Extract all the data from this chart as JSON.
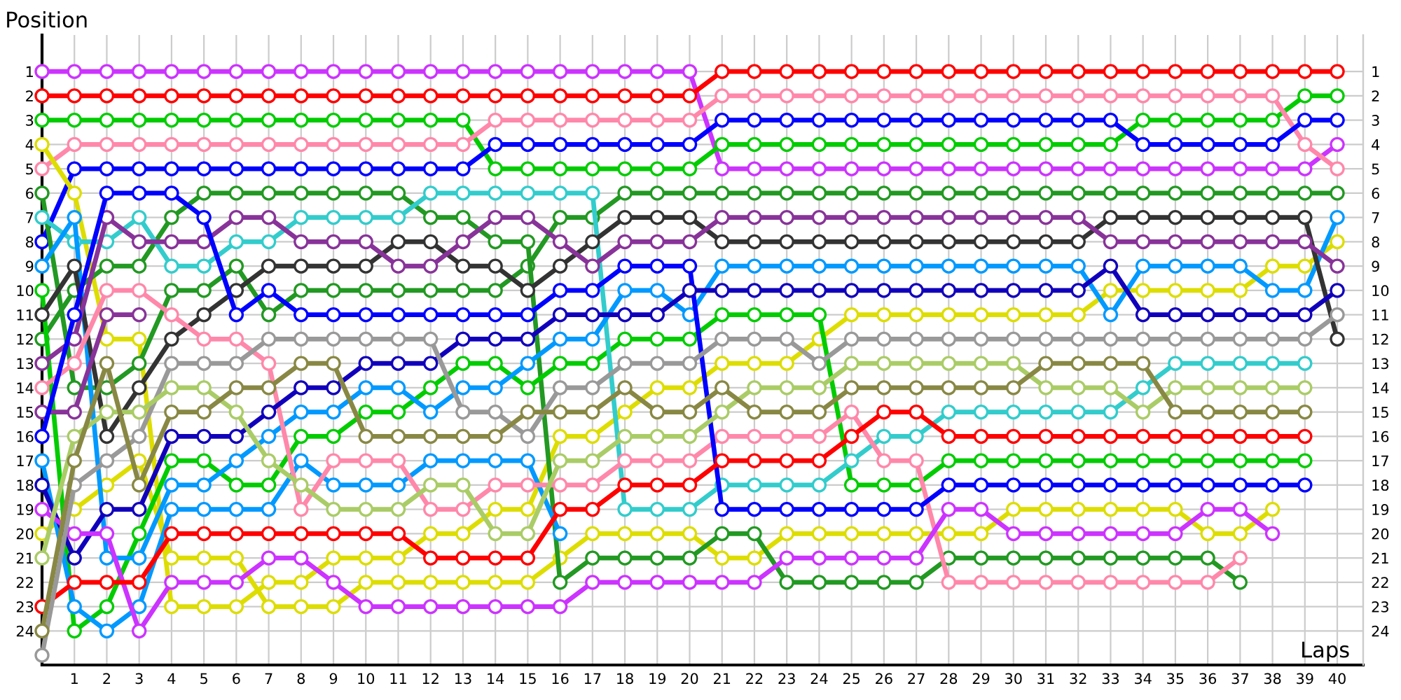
{
  "chart_data": {
    "type": "line",
    "xlabel": "Laps",
    "ylabel": "Position",
    "x": [
      0,
      1,
      2,
      3,
      4,
      5,
      6,
      7,
      8,
      9,
      10,
      11,
      12,
      13,
      14,
      15,
      16,
      17,
      18,
      19,
      20,
      21,
      22,
      23,
      24,
      25,
      26,
      27,
      28,
      29,
      30,
      31,
      32,
      33,
      34,
      35,
      36,
      37,
      38,
      39,
      40
    ],
    "xlim": [
      0,
      40.8
    ],
    "xticks": [
      1,
      2,
      3,
      4,
      5,
      6,
      7,
      8,
      9,
      10,
      11,
      12,
      13,
      14,
      15,
      16,
      17,
      18,
      19,
      20,
      21,
      22,
      23,
      24,
      25,
      26,
      27,
      28,
      29,
      30,
      31,
      32,
      33,
      34,
      35,
      36,
      37,
      38,
      39,
      40
    ],
    "ylim": [
      25.4,
      -0.5
    ],
    "yticks": [
      1,
      2,
      3,
      4,
      5,
      6,
      7,
      8,
      9,
      10,
      11,
      12,
      13,
      14,
      15,
      16,
      17,
      18,
      19,
      20,
      21,
      22,
      23,
      24
    ],
    "y2lim": [
      25.4,
      -0.5
    ],
    "y2ticks": [
      1,
      2,
      3,
      4,
      5,
      6,
      7,
      8,
      9,
      10,
      11,
      12,
      13,
      14,
      15,
      16,
      17,
      18,
      19,
      20,
      21,
      22,
      23,
      24
    ],
    "grid": true,
    "marker": "circle",
    "line_style": "solid",
    "series": [
      {
        "color": "#cc33ff",
        "values": [
          1,
          1,
          1,
          1,
          1,
          1,
          1,
          1,
          1,
          1,
          1,
          1,
          1,
          1,
          1,
          1,
          1,
          1,
          1,
          1,
          1,
          5,
          5,
          5,
          5,
          5,
          5,
          5,
          5,
          5,
          5,
          5,
          5,
          5,
          5,
          5,
          5,
          5,
          5,
          5,
          4
        ]
      },
      {
        "color": "#ff0000",
        "values": [
          2,
          2,
          2,
          2,
          2,
          2,
          2,
          2,
          2,
          2,
          2,
          2,
          2,
          2,
          2,
          2,
          2,
          2,
          2,
          2,
          2,
          1,
          1,
          1,
          1,
          1,
          1,
          1,
          1,
          1,
          1,
          1,
          1,
          1,
          1,
          1,
          1,
          1,
          1,
          1,
          1
        ]
      },
      {
        "color": "#00cc00",
        "values": [
          3,
          3,
          3,
          3,
          3,
          3,
          3,
          3,
          3,
          3,
          3,
          3,
          3,
          3,
          5,
          5,
          5,
          5,
          5,
          5,
          5,
          4,
          4,
          4,
          4,
          4,
          4,
          4,
          4,
          4,
          4,
          4,
          4,
          4,
          3,
          3,
          3,
          3,
          3,
          2,
          2
        ]
      },
      {
        "color": "#ff88aa",
        "values": [
          5,
          4,
          4,
          4,
          4,
          4,
          4,
          4,
          4,
          4,
          4,
          4,
          4,
          4,
          3,
          3,
          3,
          3,
          3,
          3,
          3,
          2,
          2,
          2,
          2,
          2,
          2,
          2,
          2,
          2,
          2,
          2,
          2,
          2,
          2,
          2,
          2,
          2,
          2,
          4,
          5
        ]
      },
      {
        "color": "#0000ff",
        "values": [
          8,
          5,
          5,
          5,
          5,
          5,
          5,
          5,
          5,
          5,
          5,
          5,
          5,
          5,
          4,
          4,
          4,
          4,
          4,
          4,
          4,
          3,
          3,
          3,
          3,
          3,
          3,
          3,
          3,
          3,
          3,
          3,
          3,
          3,
          4,
          4,
          4,
          4,
          4,
          3,
          3
        ]
      },
      {
        "color": "#dddd00",
        "values": [
          4,
          6,
          12,
          12,
          23,
          23,
          23,
          22,
          22,
          21,
          21,
          21,
          20,
          20,
          19,
          19,
          16,
          16,
          15,
          14,
          14,
          13,
          13,
          13,
          12,
          11,
          11,
          11,
          11,
          11,
          11,
          11,
          11,
          10,
          10,
          10,
          10,
          10,
          9,
          9,
          8
        ]
      },
      {
        "color": "#dddd00",
        "values": [
          20,
          19,
          18,
          17,
          21,
          21,
          21,
          23,
          23,
          23,
          22,
          22,
          22,
          22,
          22,
          22,
          21,
          20,
          20,
          20,
          20,
          21,
          21,
          20,
          20,
          20,
          20,
          20,
          20,
          20,
          19,
          19,
          19,
          19,
          19,
          19,
          20,
          20,
          19,
          null,
          null
        ]
      },
      {
        "color": "#229922",
        "values": [
          6,
          14,
          14,
          13,
          10,
          10,
          9,
          11,
          10,
          10,
          10,
          10,
          10,
          10,
          10,
          9,
          7,
          7,
          6,
          6,
          6,
          6,
          6,
          6,
          6,
          6,
          6,
          6,
          6,
          6,
          6,
          6,
          6,
          6,
          6,
          6,
          6,
          6,
          6,
          6,
          6
        ]
      },
      {
        "color": "#229922",
        "values": [
          12,
          10,
          9,
          9,
          7,
          6,
          6,
          6,
          6,
          6,
          6,
          6,
          7,
          7,
          8,
          8,
          22,
          21,
          21,
          21,
          21,
          20,
          20,
          22,
          22,
          22,
          22,
          22,
          21,
          21,
          21,
          21,
          21,
          21,
          21,
          21,
          21,
          22,
          null,
          null,
          null
        ]
      },
      {
        "color": "#00cc00",
        "values": [
          10,
          24,
          23,
          20,
          17,
          17,
          18,
          18,
          16,
          16,
          15,
          15,
          14,
          13,
          13,
          14,
          13,
          13,
          12,
          12,
          12,
          11,
          11,
          11,
          11,
          18,
          18,
          18,
          17,
          17,
          17,
          17,
          17,
          17,
          17,
          17,
          17,
          17,
          17,
          17,
          null
        ]
      },
      {
        "color": "#33cccc",
        "values": [
          7,
          8,
          8,
          7,
          9,
          9,
          8,
          8,
          7,
          7,
          7,
          7,
          6,
          6,
          6,
          6,
          6,
          6,
          19,
          19,
          19,
          18,
          18,
          18,
          18,
          17,
          16,
          16,
          15,
          15,
          15,
          15,
          15,
          15,
          14,
          13,
          13,
          13,
          13,
          13,
          null
        ]
      },
      {
        "color": "#0099ff",
        "values": [
          9,
          7,
          21,
          21,
          18,
          18,
          17,
          16,
          15,
          15,
          14,
          14,
          15,
          14,
          14,
          13,
          12,
          12,
          10,
          10,
          11,
          9,
          9,
          9,
          9,
          9,
          9,
          9,
          9,
          9,
          9,
          9,
          9,
          11,
          9,
          9,
          9,
          9,
          10,
          10,
          7
        ]
      },
      {
        "color": "#0099ff",
        "values": [
          17,
          23,
          24,
          23,
          19,
          19,
          19,
          19,
          17,
          18,
          18,
          18,
          17,
          17,
          17,
          17,
          20,
          null,
          null,
          null,
          null,
          null,
          null,
          null,
          null,
          null,
          null,
          null,
          null,
          null,
          null,
          null,
          null,
          null,
          null,
          null,
          null,
          null,
          null,
          null,
          null
        ]
      },
      {
        "color": "#333333",
        "values": [
          11,
          9,
          16,
          14,
          12,
          11,
          10,
          9,
          9,
          9,
          9,
          8,
          8,
          9,
          9,
          10,
          9,
          8,
          7,
          7,
          7,
          8,
          8,
          8,
          8,
          8,
          8,
          8,
          8,
          8,
          8,
          8,
          8,
          7,
          7,
          7,
          7,
          7,
          7,
          7,
          12
        ]
      },
      {
        "color": "#883399",
        "values": [
          13,
          12,
          7,
          8,
          8,
          8,
          7,
          7,
          8,
          8,
          8,
          9,
          9,
          8,
          7,
          7,
          8,
          9,
          8,
          8,
          8,
          7,
          7,
          7,
          7,
          7,
          7,
          7,
          7,
          7,
          7,
          7,
          7,
          8,
          8,
          8,
          8,
          8,
          8,
          8,
          9
        ]
      },
      {
        "color": "#883399",
        "values": [
          15,
          15,
          11,
          11,
          null,
          null,
          null,
          null,
          null,
          null,
          null,
          null,
          null,
          null,
          null,
          null,
          null,
          null,
          null,
          null,
          null,
          null,
          null,
          null,
          null,
          null,
          null,
          null,
          null,
          null,
          null,
          null,
          null,
          null,
          null,
          null,
          null,
          null,
          null,
          null,
          null
        ]
      },
      {
        "color": "#ff88aa",
        "values": [
          14,
          13,
          10,
          10,
          11,
          12,
          12,
          13,
          19,
          17,
          17,
          17,
          19,
          19,
          18,
          18,
          18,
          18,
          17,
          17,
          17,
          16,
          16,
          16,
          16,
          15,
          17,
          17,
          22,
          22,
          22,
          22,
          22,
          22,
          22,
          22,
          22,
          21,
          null,
          null,
          null
        ]
      },
      {
        "color": "#0000ff",
        "values": [
          16,
          11,
          6,
          6,
          6,
          7,
          11,
          10,
          11,
          11,
          11,
          11,
          11,
          11,
          11,
          11,
          10,
          10,
          9,
          9,
          9,
          19,
          19,
          19,
          19,
          19,
          19,
          19,
          18,
          18,
          18,
          18,
          18,
          18,
          18,
          18,
          18,
          18,
          18,
          18,
          null
        ]
      },
      {
        "color": "#1100bb",
        "values": [
          18,
          21,
          19,
          19,
          16,
          16,
          16,
          15,
          14,
          14,
          13,
          13,
          13,
          12,
          12,
          12,
          11,
          11,
          11,
          11,
          10,
          10,
          10,
          10,
          10,
          10,
          10,
          10,
          10,
          10,
          10,
          10,
          10,
          9,
          11,
          11,
          11,
          11,
          11,
          11,
          10
        ]
      },
      {
        "color": "#cc33ff",
        "values": [
          19,
          20,
          20,
          24,
          22,
          22,
          22,
          21,
          21,
          22,
          23,
          23,
          23,
          23,
          23,
          23,
          23,
          22,
          22,
          22,
          22,
          22,
          22,
          21,
          21,
          21,
          21,
          21,
          19,
          19,
          20,
          20,
          20,
          20,
          20,
          20,
          19,
          19,
          20,
          null,
          null
        ]
      },
      {
        "color": "#ff0000",
        "values": [
          23,
          22,
          22,
          22,
          20,
          20,
          20,
          20,
          20,
          20,
          20,
          20,
          21,
          21,
          21,
          21,
          19,
          19,
          18,
          18,
          18,
          17,
          17,
          17,
          17,
          16,
          15,
          15,
          16,
          16,
          16,
          16,
          16,
          16,
          16,
          16,
          16,
          16,
          16,
          16,
          null
        ]
      },
      {
        "color": "#999999",
        "values": [
          25,
          18,
          17,
          16,
          13,
          13,
          13,
          12,
          12,
          12,
          12,
          12,
          12,
          15,
          15,
          16,
          14,
          14,
          13,
          13,
          13,
          12,
          12,
          12,
          13,
          12,
          12,
          12,
          12,
          12,
          12,
          12,
          12,
          12,
          12,
          12,
          12,
          12,
          12,
          12,
          11
        ]
      },
      {
        "color": "#aacc66",
        "values": [
          21,
          16,
          15,
          15,
          14,
          14,
          15,
          17,
          18,
          19,
          19,
          19,
          18,
          18,
          20,
          20,
          17,
          17,
          16,
          16,
          16,
          15,
          14,
          14,
          14,
          13,
          13,
          13,
          13,
          13,
          13,
          14,
          14,
          14,
          15,
          14,
          14,
          14,
          14,
          14,
          null
        ]
      },
      {
        "color": "#888844",
        "values": [
          24,
          17,
          13,
          18,
          15,
          15,
          14,
          14,
          13,
          13,
          16,
          16,
          16,
          16,
          16,
          15,
          15,
          15,
          14,
          15,
          15,
          14,
          15,
          15,
          15,
          14,
          14,
          14,
          14,
          14,
          14,
          13,
          13,
          13,
          13,
          15,
          15,
          15,
          15,
          15,
          null
        ]
      }
    ]
  }
}
